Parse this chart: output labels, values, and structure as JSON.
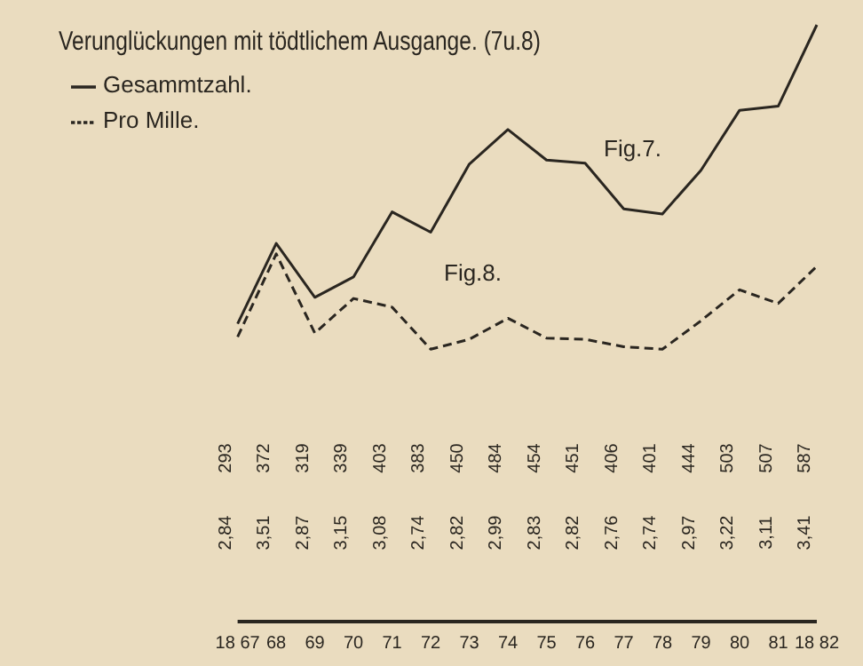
{
  "chart_data": {
    "type": "line",
    "title": "Verunglückungen mit tödtlichem Ausgange. (7u.8)",
    "categories": [
      "18 67",
      "68",
      "69",
      "70",
      "71",
      "72",
      "73",
      "74",
      "75",
      "76",
      "77",
      "78",
      "79",
      "80",
      "81",
      "18 82"
    ],
    "series": [
      {
        "name": "Gesammtzahl.",
        "color": "#2a2620",
        "line_style": "solid",
        "values": [
          293,
          372,
          319,
          339,
          403,
          383,
          450,
          484,
          454,
          451,
          406,
          401,
          444,
          503,
          507,
          587
        ],
        "value_labels": [
          "293",
          "372",
          "319",
          "339",
          "403",
          "383",
          "450",
          "484",
          "454",
          "451",
          "406",
          "401",
          "444",
          "503",
          "507",
          "587"
        ]
      },
      {
        "name": "Pro Mille.",
        "color": "#2a2620",
        "line_style": "dashed",
        "axis": "y2",
        "values": [
          2.84,
          3.51,
          2.87,
          3.15,
          3.08,
          2.74,
          2.82,
          2.99,
          2.83,
          2.82,
          2.76,
          2.74,
          2.97,
          3.22,
          3.11,
          3.41
        ],
        "value_labels": [
          "2,84",
          "3,51",
          "2,87",
          "3,15",
          "3,08",
          "2,74",
          "2,82",
          "2,99",
          "2,83",
          "2,82",
          "2,76",
          "2,74",
          "2,97",
          "3,22",
          "3,11",
          "3,41"
        ]
      }
    ],
    "tick_labels": "x",
    "legend": "top left",
    "marker": "none",
    "annotations": [
      "Fig.7.",
      "Fig.8."
    ]
  }
}
